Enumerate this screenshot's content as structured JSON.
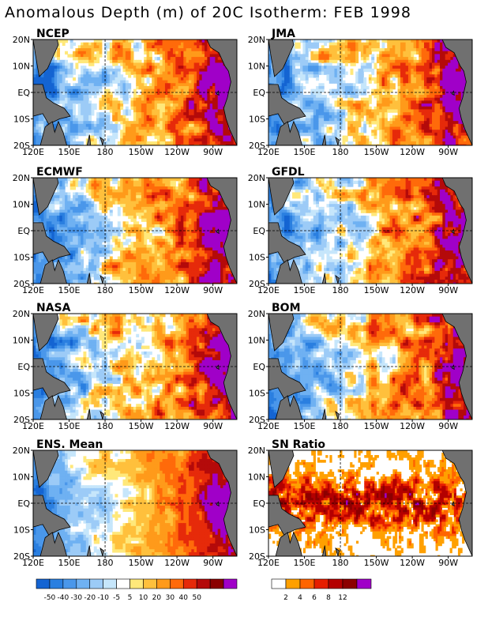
{
  "title": "Anomalous Depth (m) of 20C Isotherm: FEB 1998",
  "lat_ticks": [
    "20N",
    "10N",
    "EQ",
    "10S",
    "20S"
  ],
  "lon_ticks": [
    "120E",
    "150E",
    "180",
    "150W",
    "120W",
    "90W"
  ],
  "map_extent": {
    "lon_min": 120,
    "lon_max": 290,
    "lat_min": -20,
    "lat_max": 20
  },
  "reference_lines": {
    "lon": 180,
    "lat": 0
  },
  "panels": [
    {
      "name": "NCEP",
      "colorbar": "anomaly",
      "style": "anom",
      "seed": 11
    },
    {
      "name": "JMA",
      "colorbar": "anomaly",
      "style": "anom",
      "seed": 23
    },
    {
      "name": "ECMWF",
      "colorbar": "anomaly",
      "style": "anom",
      "seed": 37
    },
    {
      "name": "GFDL",
      "colorbar": "anomaly",
      "style": "anom",
      "seed": 41
    },
    {
      "name": "NASA",
      "colorbar": "anomaly",
      "style": "anom",
      "seed": 53
    },
    {
      "name": "BOM",
      "colorbar": "anomaly",
      "style": "anom",
      "seed": 67
    },
    {
      "name": "ENS. Mean",
      "colorbar": "anomaly",
      "style": "mean",
      "seed": 71
    },
    {
      "name": "SN Ratio",
      "colorbar": "snratio",
      "style": "sn",
      "seed": 83
    }
  ],
  "colorbars": {
    "anomaly": {
      "colors": [
        "#1464d2",
        "#2a7fe0",
        "#4a97ea",
        "#6fb1f2",
        "#9ccbf7",
        "#c6e6fb",
        "#ffffff",
        "#ffe87a",
        "#ffc03c",
        "#ff9a1a",
        "#ff6a0a",
        "#e62a0a",
        "#b40a0a",
        "#8a0000",
        "#a000c8"
      ],
      "tick_labels": [
        "-50",
        "-40",
        "-30",
        "-20",
        "-10",
        "-5",
        "5",
        "10",
        "20",
        "30",
        "40",
        "50"
      ],
      "bounds": [
        -60,
        -50,
        -40,
        -30,
        -20,
        -10,
        -5,
        5,
        10,
        20,
        30,
        40,
        50,
        60
      ]
    },
    "snratio": {
      "colors": [
        "#ffffff",
        "#ffa000",
        "#ff6400",
        "#e61e00",
        "#b40000",
        "#8c0000",
        "#a000c8"
      ],
      "tick_labels": [
        "2",
        "4",
        "6",
        "8",
        "12"
      ],
      "bounds": [
        0,
        2,
        4,
        6,
        8,
        12,
        16
      ]
    }
  },
  "land_color": "#707070",
  "land_outline_color": "#000000"
}
